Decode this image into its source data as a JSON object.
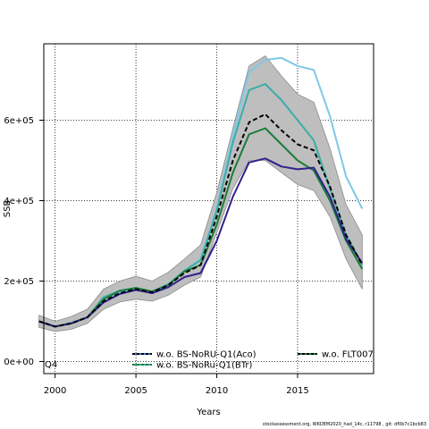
{
  "chart_data": {
    "type": "line",
    "title": "",
    "xlabel": "Years",
    "ylabel": "SSB",
    "xlim": [
      1999.3,
      2019.7
    ],
    "ylim": [
      -30000,
      790000
    ],
    "x_ticks": [
      2000,
      2005,
      2010,
      2015
    ],
    "y_ticks": [
      0,
      200000,
      400000,
      600000
    ],
    "y_tick_labels": [
      "0e+00",
      "2e+05",
      "4e+05",
      "6e+05"
    ],
    "grid": true,
    "corner_label": "Q4",
    "legend_placement": "bottom",
    "x": [
      1999,
      2000,
      2001,
      2002,
      2003,
      2004,
      2005,
      2006,
      2007,
      2008,
      2009,
      2010,
      2011,
      2012,
      2013,
      2014,
      2015,
      2016,
      2017,
      2018,
      2019
    ],
    "band": {
      "color": "#bebebe",
      "lower": [
        85000,
        75000,
        80000,
        95000,
        130000,
        148000,
        155000,
        150000,
        165000,
        190000,
        210000,
        320000,
        430000,
        500000,
        500000,
        470000,
        440000,
        425000,
        360000,
        255000,
        180000
      ],
      "upper": [
        115000,
        100000,
        112000,
        130000,
        180000,
        200000,
        212000,
        200000,
        222000,
        255000,
        290000,
        420000,
        580000,
        735000,
        760000,
        710000,
        665000,
        645000,
        530000,
        390000,
        315000
      ]
    },
    "series": [
      {
        "color": "#000000",
        "dash": "5,3",
        "values": [
          100000,
          87000,
          95000,
          110000,
          150000,
          170000,
          180000,
          172000,
          190000,
          220000,
          240000,
          360000,
          500000,
          595000,
          615000,
          575000,
          540000,
          525000,
          435000,
          315000,
          240000
        ]
      },
      {
        "color": "#31208c",
        "dash": "",
        "values": [
          100000,
          87000,
          95000,
          110000,
          147000,
          168000,
          178000,
          170000,
          185000,
          210000,
          220000,
          300000,
          410000,
          495000,
          505000,
          485000,
          478000,
          482000,
          410000,
          305000,
          245000
        ]
      },
      {
        "color": "#7ec8e8",
        "dash": "",
        "values": [
          100000,
          87000,
          96000,
          110000,
          155000,
          172000,
          181000,
          172000,
          192000,
          225000,
          255000,
          380000,
          560000,
          720000,
          750000,
          755000,
          735000,
          725000,
          610000,
          460000,
          380000
        ]
      },
      {
        "color": "#3aada8",
        "dash": "",
        "values": [
          100000,
          87000,
          96000,
          110000,
          160000,
          176000,
          183000,
          174000,
          192000,
          226000,
          252000,
          375000,
          545000,
          675000,
          690000,
          650000,
          600000,
          550000,
          430000,
          315000,
          240000
        ]
      },
      {
        "color": "#1a7d3a",
        "dash": "",
        "values": [
          100000,
          87000,
          95000,
          110000,
          155000,
          176000,
          183000,
          174000,
          190000,
          224000,
          240000,
          340000,
          470000,
          565000,
          580000,
          540000,
          500000,
          475000,
          400000,
          300000,
          230000
        ]
      }
    ],
    "legend": [
      {
        "label": "w.o. BS-NoRU-Q1(Aco)",
        "color": "#000000",
        "dash": "3,2",
        "line": "#2f7bd0"
      },
      {
        "label": "w.o. BS-NoRu-Q1(BTr)",
        "color": "#1a7d3a",
        "dash": "3,2",
        "line": "#3aada8"
      },
      {
        "label": "w.o. FLT007",
        "color": "#000000",
        "dash": "3,2",
        "line": "#1a7d3a"
      }
    ]
  },
  "footer": "stockassessment.org, WKDEM2020_had_14c, r11798 , git: df0b7c1bcb83"
}
